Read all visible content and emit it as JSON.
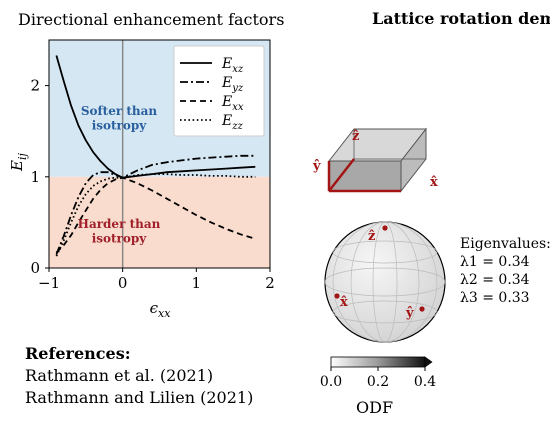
{
  "chart_data": {
    "type": "line",
    "title": "Directional enhancement factors",
    "xlabel": "ϵxx",
    "ylabel": "Eij",
    "xlim": [
      -1,
      2
    ],
    "ylim": [
      0,
      2.5
    ],
    "xticks": [
      -1,
      0,
      1,
      2
    ],
    "yticks": [
      0,
      1,
      2
    ],
    "regions": {
      "softer": {
        "label_1": "Softer than",
        "label_2": "isotropy",
        "y_range": [
          1,
          2.5
        ],
        "fill": "#d5e7f3",
        "text_color": "#2a5f9e"
      },
      "harder": {
        "label_1": "Harder than",
        "label_2": "isotropy",
        "y_range": [
          0,
          1
        ],
        "fill": "#f9dccd",
        "text_color": "#a0202a"
      }
    },
    "vline_x": 0,
    "series": [
      {
        "name": "Exz",
        "sub": "xz",
        "style": "solid",
        "x": [
          -0.9,
          -0.8,
          -0.7,
          -0.6,
          -0.5,
          -0.4,
          -0.3,
          -0.2,
          -0.1,
          0,
          0.2,
          0.4,
          0.6,
          0.8,
          1.0,
          1.2,
          1.4,
          1.6,
          1.8
        ],
        "y": [
          2.33,
          2.05,
          1.78,
          1.56,
          1.4,
          1.27,
          1.17,
          1.09,
          1.03,
          0.99,
          1.01,
          1.03,
          1.05,
          1.06,
          1.07,
          1.08,
          1.09,
          1.1,
          1.11
        ]
      },
      {
        "name": "Eyz",
        "sub": "yz",
        "style": "dashdot",
        "x": [
          -0.9,
          -0.8,
          -0.7,
          -0.6,
          -0.5,
          -0.4,
          -0.3,
          -0.2,
          -0.1,
          0,
          0.2,
          0.4,
          0.6,
          0.8,
          1.0,
          1.2,
          1.4,
          1.6,
          1.8
        ],
        "y": [
          0.15,
          0.35,
          0.58,
          0.78,
          0.93,
          1.02,
          1.05,
          1.05,
          1.02,
          0.99,
          1.07,
          1.13,
          1.16,
          1.18,
          1.2,
          1.21,
          1.22,
          1.23,
          1.23
        ]
      },
      {
        "name": "Exx",
        "sub": "xx",
        "style": "dashed",
        "x": [
          -0.9,
          -0.8,
          -0.7,
          -0.6,
          -0.5,
          -0.4,
          -0.3,
          -0.2,
          -0.1,
          0,
          0.2,
          0.4,
          0.6,
          0.8,
          1.0,
          1.2,
          1.4,
          1.6,
          1.8
        ],
        "y": [
          0.17,
          0.25,
          0.36,
          0.5,
          0.63,
          0.76,
          0.86,
          0.93,
          0.97,
          0.99,
          0.93,
          0.85,
          0.76,
          0.67,
          0.58,
          0.5,
          0.43,
          0.37,
          0.32
        ]
      },
      {
        "name": "Ezz",
        "sub": "zz",
        "style": "dotted",
        "x": [
          -0.9,
          -0.8,
          -0.7,
          -0.6,
          -0.5,
          -0.4,
          -0.3,
          -0.2,
          -0.1,
          0,
          0.2,
          0.4,
          0.6,
          0.8,
          1.0,
          1.2,
          1.4,
          1.6,
          1.8
        ],
        "y": [
          0.13,
          0.3,
          0.5,
          0.68,
          0.81,
          0.9,
          0.95,
          0.98,
          0.99,
          0.99,
          1.02,
          1.03,
          1.03,
          1.02,
          1.02,
          1.01,
          1.01,
          1.0,
          1.0
        ]
      }
    ]
  },
  "demo": {
    "title": "Lattice rotation demo",
    "cube_labels": {
      "x": "x̂",
      "y": "ŷ",
      "z": "ẑ"
    },
    "sphere_labels": {
      "x": "x̂",
      "y": "ŷ",
      "z": "ẑ"
    },
    "axis_color": "#a31515",
    "eigen": {
      "header": "Eigenvalues:",
      "l1": "λ1 = 0.34",
      "l2": "λ2 = 0.34",
      "l3": "λ3 = 0.33"
    },
    "colorbar": {
      "label": "ODF",
      "ticks": [
        "0.0",
        "0.2",
        "0.4"
      ],
      "range": [
        0.0,
        0.4
      ]
    }
  },
  "references": {
    "heading": "References:",
    "items": [
      "Rathmann et al. (2021)",
      "Rathmann and Lilien (2021)"
    ]
  }
}
